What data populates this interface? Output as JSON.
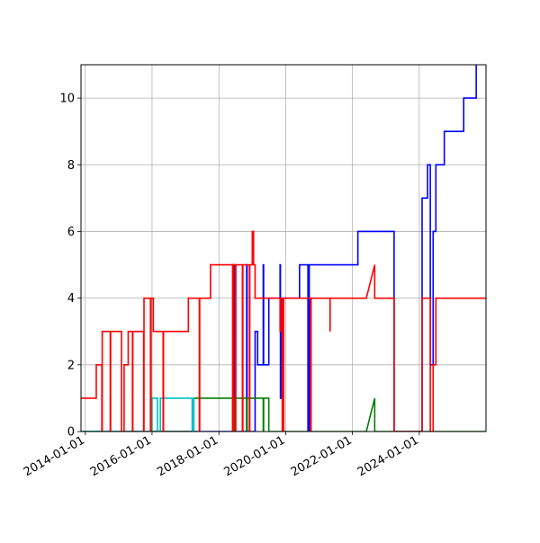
{
  "chart_data": {
    "type": "line",
    "title": "",
    "xlabel": "",
    "ylabel": "",
    "xlim": [
      "2013-11-15",
      "2025-12-31"
    ],
    "ylim": [
      0,
      11
    ],
    "grid": true,
    "x_ticks": [
      "2014-01-01",
      "2016-01-01",
      "2018-01-01",
      "2020-01-01",
      "2022-01-01",
      "2024-01-01"
    ],
    "y_ticks": [
      0,
      2,
      4,
      6,
      8,
      10
    ],
    "colors": {
      "blue": "#0000ff",
      "red": "#ff0000",
      "green": "#008000",
      "cyan": "#00bfbf",
      "grid": "#b0b0b0"
    },
    "series": [
      {
        "color": "#0000ff",
        "points": [
          [
            "2013-11-15",
            0
          ],
          [
            "2018-06-01",
            0
          ],
          [
            "2018-06-01",
            5
          ],
          [
            "2018-06-05",
            5
          ],
          [
            "2018-06-05",
            0
          ],
          [
            "2018-06-10",
            0
          ],
          [
            "2018-06-10",
            5
          ],
          [
            "2018-06-14",
            5
          ],
          [
            "2018-06-14",
            0
          ],
          [
            "2018-06-18",
            0
          ],
          [
            "2018-06-18",
            5
          ],
          [
            "2018-06-22",
            5
          ],
          [
            "2018-06-22",
            0
          ],
          [
            "2018-06-26",
            0
          ],
          [
            "2018-06-26",
            5
          ],
          [
            "2018-06-30",
            5
          ],
          [
            "2018-06-30",
            0
          ],
          [
            "2018-11-01",
            0
          ],
          [
            "2018-11-01",
            5
          ],
          [
            "2018-11-05",
            5
          ],
          [
            "2018-11-05",
            0
          ],
          [
            "2019-02-01",
            0
          ],
          [
            "2019-02-01",
            3
          ],
          [
            "2019-03-01",
            3
          ],
          [
            "2019-03-01",
            2
          ],
          [
            "2019-05-01",
            2
          ],
          [
            "2019-05-01",
            5
          ],
          [
            "2019-05-05",
            5
          ],
          [
            "2019-05-05",
            2
          ],
          [
            "2019-07-01",
            2
          ],
          [
            "2019-07-01",
            4
          ],
          [
            "2019-11-01",
            4
          ],
          [
            "2019-11-01",
            5
          ],
          [
            "2019-11-05",
            5
          ],
          [
            "2019-11-05",
            1
          ],
          [
            "2019-11-10",
            1
          ],
          [
            "2019-11-10",
            4
          ],
          [
            "2020-06-01",
            4
          ],
          [
            "2020-06-01",
            5
          ],
          [
            "2020-09-01",
            5
          ],
          [
            "2020-09-01",
            0
          ],
          [
            "2020-09-15",
            0
          ],
          [
            "2020-09-15",
            5
          ],
          [
            "2022-03-01",
            5
          ],
          [
            "2022-03-01",
            6
          ],
          [
            "2023-04-01",
            6
          ],
          [
            "2023-04-01",
            0
          ],
          [
            "2024-02-01",
            0
          ],
          [
            "2024-02-01",
            7
          ],
          [
            "2024-04-01",
            7
          ],
          [
            "2024-04-01",
            8
          ],
          [
            "2024-05-01",
            8
          ],
          [
            "2024-05-01",
            2
          ],
          [
            "2024-06-01",
            2
          ],
          [
            "2024-06-01",
            6
          ],
          [
            "2024-07-01",
            6
          ],
          [
            "2024-07-01",
            8
          ],
          [
            "2024-10-01",
            8
          ],
          [
            "2024-10-01",
            9
          ],
          [
            "2025-05-01",
            9
          ],
          [
            "2025-05-01",
            10
          ],
          [
            "2025-09-15",
            10
          ],
          [
            "2025-09-15",
            11
          ]
        ]
      },
      {
        "color": "#008000",
        "points": [
          [
            "2013-11-15",
            0
          ],
          [
            "2017-04-01",
            0
          ],
          [
            "2017-04-01",
            1
          ],
          [
            "2018-06-01",
            1
          ],
          [
            "2018-06-01",
            0
          ],
          [
            "2018-06-03",
            0
          ],
          [
            "2018-06-03",
            1
          ],
          [
            "2018-06-06",
            1
          ],
          [
            "2018-06-06",
            0
          ],
          [
            "2018-06-09",
            0
          ],
          [
            "2018-06-09",
            1
          ],
          [
            "2018-06-12",
            1
          ],
          [
            "2018-06-12",
            0
          ],
          [
            "2018-06-15",
            0
          ],
          [
            "2018-06-15",
            1
          ],
          [
            "2018-06-18",
            1
          ],
          [
            "2018-06-18",
            0
          ],
          [
            "2018-06-21",
            0
          ],
          [
            "2018-06-21",
            1
          ],
          [
            "2018-11-01",
            1
          ],
          [
            "2018-11-01",
            0
          ],
          [
            "2018-11-05",
            0
          ],
          [
            "2018-11-05",
            1
          ],
          [
            "2019-05-01",
            1
          ],
          [
            "2019-05-01",
            0
          ],
          [
            "2019-05-05",
            0
          ],
          [
            "2019-05-05",
            1
          ],
          [
            "2019-07-01",
            1
          ],
          [
            "2019-07-01",
            0
          ],
          [
            "2022-06-01",
            0
          ],
          [
            "2022-09-01",
            1
          ],
          [
            "2022-09-01",
            0
          ],
          [
            "2025-12-31",
            0
          ]
        ]
      },
      {
        "color": "#00bfbf",
        "points": [
          [
            "2013-11-15",
            0
          ],
          [
            "2016-01-01",
            0
          ],
          [
            "2016-01-01",
            1
          ],
          [
            "2016-03-01",
            1
          ],
          [
            "2016-03-01",
            0
          ],
          [
            "2016-04-01",
            0
          ],
          [
            "2016-04-01",
            1
          ],
          [
            "2017-03-15",
            1
          ],
          [
            "2017-03-15",
            0
          ],
          [
            "2017-04-01",
            0
          ],
          [
            "2017-04-01",
            1
          ]
        ]
      },
      {
        "color": "#ff0000",
        "points": [
          [
            "2013-11-15",
            1
          ],
          [
            "2014-05-01",
            1
          ],
          [
            "2014-05-01",
            2
          ],
          [
            "2014-07-01",
            2
          ],
          [
            "2014-07-01",
            0
          ],
          [
            "2014-07-05",
            0
          ],
          [
            "2014-07-05",
            3
          ],
          [
            "2014-10-01",
            3
          ],
          [
            "2014-10-01",
            0
          ],
          [
            "2014-10-05",
            0
          ],
          [
            "2014-10-05",
            3
          ],
          [
            "2015-02-01",
            3
          ],
          [
            "2015-02-01",
            0
          ],
          [
            "2015-03-01",
            0
          ],
          [
            "2015-03-01",
            2
          ],
          [
            "2015-04-15",
            2
          ],
          [
            "2015-04-15",
            3
          ],
          [
            "2015-06-01",
            3
          ],
          [
            "2015-06-01",
            0
          ],
          [
            "2015-06-05",
            0
          ],
          [
            "2015-06-05",
            3
          ],
          [
            "2015-10-01",
            3
          ],
          [
            "2015-10-01",
            0
          ],
          [
            "2015-10-05",
            0
          ],
          [
            "2015-10-05",
            4
          ],
          [
            "2015-12-15",
            4
          ],
          [
            "2015-12-15",
            0
          ],
          [
            "2015-12-20",
            0
          ],
          [
            "2015-12-20",
            4
          ],
          [
            "2016-01-15",
            4
          ],
          [
            "2016-01-15",
            3
          ],
          [
            "2016-05-01",
            3
          ],
          [
            "2016-05-01",
            0
          ],
          [
            "2016-05-05",
            0
          ],
          [
            "2016-05-05",
            3
          ],
          [
            "2017-02-01",
            3
          ],
          [
            "2017-02-01",
            4
          ],
          [
            "2017-06-01",
            4
          ],
          [
            "2017-06-01",
            0
          ],
          [
            "2017-06-05",
            0
          ],
          [
            "2017-06-05",
            4
          ],
          [
            "2017-10-01",
            4
          ],
          [
            "2017-10-01",
            5
          ],
          [
            "2018-06-01",
            5
          ],
          [
            "2018-06-01",
            0
          ],
          [
            "2018-06-08",
            0
          ],
          [
            "2018-06-08",
            5
          ],
          [
            "2018-07-01",
            5
          ],
          [
            "2018-07-01",
            0
          ],
          [
            "2018-07-05",
            0
          ],
          [
            "2018-07-05",
            5
          ],
          [
            "2018-09-15",
            5
          ],
          [
            "2018-09-15",
            0
          ],
          [
            "2018-09-20",
            0
          ],
          [
            "2018-09-20",
            5
          ],
          [
            "2018-12-01",
            5
          ],
          [
            "2018-12-01",
            0
          ],
          [
            "2018-12-05",
            0
          ],
          [
            "2018-12-05",
            5
          ],
          [
            "2019-01-01",
            5
          ],
          [
            "2019-01-01",
            6
          ],
          [
            "2019-01-15",
            6
          ],
          [
            "2019-01-15",
            5
          ],
          [
            "2019-02-01",
            5
          ],
          [
            "2019-02-01",
            4
          ],
          [
            "2019-11-01",
            4
          ],
          [
            "2019-11-01",
            3
          ],
          [
            "2019-11-05",
            3
          ],
          [
            "2019-11-05",
            4
          ],
          [
            "2019-11-25",
            4
          ],
          [
            "2019-11-25",
            0
          ],
          [
            "2019-12-10",
            0
          ],
          [
            "2019-12-10",
            4
          ],
          [
            "2020-10-01",
            4
          ],
          [
            "2020-10-01",
            0
          ],
          [
            "2020-10-05",
            0
          ],
          [
            "2020-10-05",
            4
          ],
          [
            "2021-05-01",
            4
          ],
          [
            "2021-05-01",
            3
          ],
          [
            "2021-05-01",
            4
          ],
          [
            "2022-06-01",
            4
          ],
          [
            "2022-09-01",
            5
          ],
          [
            "2022-09-01",
            4
          ],
          [
            "2023-04-01",
            4
          ],
          [
            "2023-04-01",
            0
          ],
          [
            "2024-02-01",
            0
          ],
          [
            "2024-02-01",
            4
          ],
          [
            "2024-05-01",
            4
          ],
          [
            "2024-05-01",
            0
          ],
          [
            "2024-06-01",
            0
          ],
          [
            "2024-06-01",
            2
          ],
          [
            "2024-07-01",
            2
          ],
          [
            "2024-07-01",
            4
          ],
          [
            "2025-12-31",
            4
          ]
        ]
      }
    ]
  }
}
